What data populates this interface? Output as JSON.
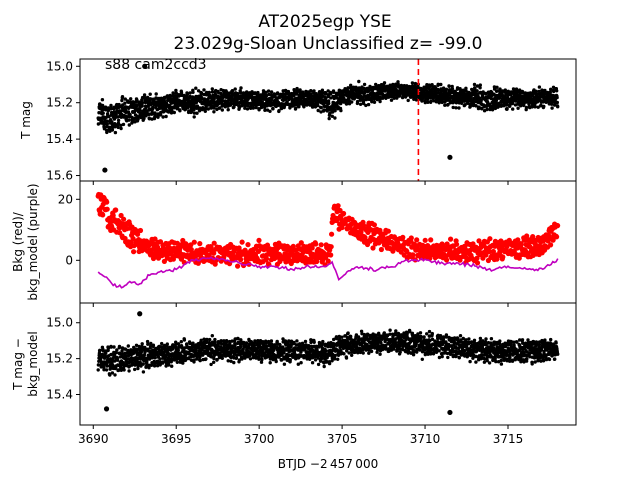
{
  "figure": {
    "title_line1": "AT2025egp  YSE",
    "title_line2": "23.029g-Sloan Unclassified z= -99.0",
    "annotation": "s88 cam2ccd3",
    "xlabel": "BTJD −2 457 000"
  },
  "colors": {
    "flux": "#000000",
    "bkg": "#ff0000",
    "bkg_model": "#bf00bf",
    "marker_line": "#ff0000"
  },
  "chart_data": [
    {
      "type": "scatter",
      "panel": "top",
      "ylabel": "T mag",
      "ylim": [
        15.63,
        14.96
      ],
      "xlim": [
        3689.2,
        3719.1
      ],
      "x_ticks": [
        3690,
        3695,
        3700,
        3705,
        3710,
        3715
      ],
      "y_ticks": [
        15.0,
        15.2,
        15.4,
        15.6
      ],
      "y_tick_labels": [
        "15.0",
        "15.2",
        "15.4",
        "15.6"
      ],
      "vline_x": 3709.6,
      "series": [
        {
          "x": [
            3690.3,
            3690.6,
            3691.0,
            3691.5,
            3692.0,
            3692.5,
            3693.0,
            3693.5,
            3694.0,
            3694.5,
            3695.0,
            3695.5,
            3696.0,
            3697.0,
            3698.0,
            3699.0,
            3700.0,
            3701.0,
            3702.0,
            3703.0,
            3704.0,
            3704.3,
            3704.6,
            3705.0,
            3705.5,
            3706.0,
            3706.5,
            3707.0,
            3707.5,
            3708.0,
            3708.5,
            3709.0,
            3709.5,
            3710.0,
            3710.5,
            3711.0,
            3711.5,
            3712.0,
            3712.5,
            3713.0,
            3713.5,
            3714.0,
            3714.5,
            3715.0,
            3715.5,
            3716.0,
            3716.5,
            3717.0,
            3717.5,
            3718.0
          ],
          "y": [
            15.24,
            15.27,
            15.3,
            15.26,
            15.25,
            15.24,
            15.23,
            15.23,
            15.22,
            15.21,
            15.19,
            15.2,
            15.2,
            15.19,
            15.18,
            15.18,
            15.18,
            15.19,
            15.18,
            15.18,
            15.19,
            15.22,
            15.2,
            15.17,
            15.16,
            15.15,
            15.16,
            15.15,
            15.14,
            15.14,
            15.13,
            15.14,
            15.14,
            15.15,
            15.15,
            15.16,
            15.16,
            15.17,
            15.18,
            15.17,
            15.18,
            15.19,
            15.18,
            15.18,
            15.17,
            15.18,
            15.19,
            15.17,
            15.18,
            15.17
          ],
          "spread": [
            0.08,
            0.09,
            0.1,
            0.09,
            0.08,
            0.08,
            0.08,
            0.07,
            0.07,
            0.07,
            0.07,
            0.07,
            0.07,
            0.07,
            0.06,
            0.06,
            0.06,
            0.06,
            0.06,
            0.06,
            0.07,
            0.09,
            0.08,
            0.06,
            0.06,
            0.06,
            0.06,
            0.06,
            0.05,
            0.05,
            0.05,
            0.05,
            0.05,
            0.06,
            0.06,
            0.06,
            0.06,
            0.06,
            0.06,
            0.07,
            0.07,
            0.07,
            0.07,
            0.06,
            0.06,
            0.06,
            0.06,
            0.06,
            0.06,
            0.06
          ],
          "outliers": [
            [
              3690.7,
              15.57
            ],
            [
              3693.1,
              15.0
            ],
            [
              3711.5,
              15.5
            ]
          ]
        }
      ]
    },
    {
      "type": "scatter",
      "panel": "middle",
      "ylabel": "Bkg (red)/\nbkg_model (purple)",
      "ylim": [
        -14,
        26
      ],
      "xlim": [
        3689.2,
        3719.1
      ],
      "x_ticks": [
        3690,
        3695,
        3700,
        3705,
        3710,
        3715
      ],
      "y_ticks": [
        0,
        20
      ],
      "y_tick_labels": [
        "0",
        "20"
      ],
      "series": [
        {
          "name": "Bkg",
          "x": [
            3690.3,
            3690.5,
            3690.7,
            3691.0,
            3691.3,
            3691.6,
            3692.0,
            3692.5,
            3693.0,
            3693.5,
            3694.0,
            3695.0,
            3696.0,
            3697.0,
            3698.0,
            3699.0,
            3700.0,
            3701.0,
            3702.0,
            3703.0,
            3704.0,
            3704.3,
            3704.5,
            3704.8,
            3705.2,
            3705.6,
            3706.0,
            3706.5,
            3707.0,
            3707.5,
            3708.0,
            3709.0,
            3710.0,
            3711.0,
            3712.0,
            3713.0,
            3714.0,
            3715.0,
            3716.0,
            3717.0,
            3717.5,
            3718.0
          ],
          "y": [
            18,
            17,
            19,
            12,
            14,
            11,
            9,
            8,
            5,
            4,
            3,
            3,
            2,
            2,
            2,
            2,
            2,
            2,
            2,
            2,
            2,
            4,
            17,
            14,
            13,
            11,
            10,
            9,
            8,
            7,
            6,
            4,
            3,
            3,
            3,
            3,
            3,
            4,
            4,
            5,
            8,
            10
          ],
          "spread": [
            5,
            5,
            5,
            5,
            5,
            5,
            5,
            5,
            4,
            4,
            4,
            4,
            4,
            4,
            4,
            4,
            4,
            4,
            4,
            4,
            4,
            4,
            4,
            4,
            4,
            4,
            4,
            4,
            4,
            4,
            4,
            4,
            4,
            4,
            4,
            4,
            4,
            4,
            4,
            4,
            4,
            4
          ]
        },
        {
          "name": "bkg_model",
          "x": [
            3690.3,
            3690.8,
            3691.3,
            3691.8,
            3692.3,
            3692.8,
            3693.3,
            3694.0,
            3695.0,
            3696.0,
            3697.0,
            3698.0,
            3699.0,
            3700.0,
            3701.0,
            3702.0,
            3703.0,
            3704.0,
            3704.4,
            3704.8,
            3705.3,
            3706.0,
            3707.0,
            3708.0,
            3709.0,
            3710.0,
            3711.0,
            3712.0,
            3713.0,
            3714.0,
            3715.0,
            3716.0,
            3717.0,
            3718.0
          ],
          "y": [
            -4,
            -6,
            -8,
            -9,
            -7,
            -8,
            -5,
            -4,
            -3,
            0,
            1,
            0,
            -1,
            -2,
            -2,
            -3,
            -2,
            -2,
            -1,
            -6,
            -4,
            -2,
            -3,
            -2,
            0,
            0,
            -1,
            -1,
            -2,
            -3,
            -2,
            -3,
            -3,
            0
          ]
        }
      ]
    },
    {
      "type": "scatter",
      "panel": "bottom",
      "ylabel": "T mag −\nbkg_model",
      "ylim": [
        15.57,
        14.89
      ],
      "xlim": [
        3689.2,
        3719.1
      ],
      "x_ticks": [
        3690,
        3695,
        3700,
        3705,
        3710,
        3715
      ],
      "x_tick_labels": [
        "3690",
        "3695",
        "3700",
        "3705",
        "3710",
        "3715"
      ],
      "y_ticks": [
        15.0,
        15.2,
        15.4
      ],
      "y_tick_labels": [
        "15.0",
        "15.2",
        "15.4"
      ],
      "series": [
        {
          "x": [
            3690.3,
            3690.8,
            3691.3,
            3692.0,
            3692.5,
            3693.0,
            3694.0,
            3695.0,
            3696.0,
            3697.0,
            3698.0,
            3699.0,
            3700.0,
            3701.0,
            3702.0,
            3703.0,
            3704.0,
            3704.5,
            3705.0,
            3706.0,
            3707.0,
            3708.0,
            3709.0,
            3710.0,
            3711.0,
            3712.0,
            3713.0,
            3714.0,
            3715.0,
            3716.0,
            3717.0,
            3718.0
          ],
          "y": [
            15.19,
            15.21,
            15.22,
            15.2,
            15.19,
            15.19,
            15.18,
            15.17,
            15.16,
            15.15,
            15.15,
            15.15,
            15.15,
            15.16,
            15.16,
            15.16,
            15.17,
            15.15,
            15.13,
            15.12,
            15.11,
            15.11,
            15.11,
            15.12,
            15.13,
            15.14,
            15.15,
            15.16,
            15.16,
            15.16,
            15.16,
            15.15
          ],
          "spread": [
            0.08,
            0.09,
            0.09,
            0.08,
            0.08,
            0.08,
            0.07,
            0.07,
            0.07,
            0.07,
            0.07,
            0.07,
            0.07,
            0.07,
            0.07,
            0.07,
            0.08,
            0.08,
            0.07,
            0.07,
            0.07,
            0.07,
            0.07,
            0.07,
            0.07,
            0.07,
            0.07,
            0.07,
            0.07,
            0.07,
            0.07,
            0.07
          ],
          "outliers": [
            [
              3690.8,
              15.48
            ],
            [
              3692.8,
              14.95
            ],
            [
              3711.5,
              15.5
            ]
          ]
        }
      ]
    }
  ]
}
